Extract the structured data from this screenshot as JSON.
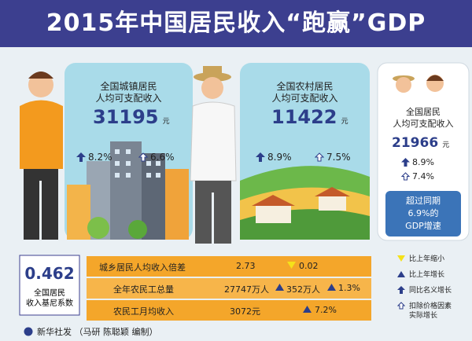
{
  "header": {
    "title": "2015年中国居民收入“跑赢”GDP"
  },
  "urban": {
    "label": [
      "全国城镇居民",
      "人均可支配收入"
    ],
    "value": "31195",
    "unit": "元",
    "nominal": "8.2%",
    "real": "6.6%"
  },
  "rural": {
    "label": [
      "全国农村居民",
      "人均可支配收入"
    ],
    "value": "11422",
    "unit": "元",
    "nominal": "8.9%",
    "real": "7.5%"
  },
  "national": {
    "label": [
      "全国居民",
      "人均可支配收入"
    ],
    "value": "21966",
    "unit": "元",
    "nominal": "8.9%",
    "real": "7.4%"
  },
  "callout": [
    "超过同期",
    "6.9%的",
    "GDP增速"
  ],
  "gini": {
    "value": "0.462",
    "label": [
      "全国居民",
      "收入基尼系数"
    ]
  },
  "table": {
    "rows": [
      [
        "城乡居民人均收入倍差",
        "2.73",
        "0.02"
      ],
      [
        "全年农民工总量",
        "27747万人",
        "352万人",
        "1.3%"
      ],
      [
        "农民工月均收入",
        "3072元",
        "7.2%"
      ]
    ]
  },
  "legend": [
    "比上年缩小",
    "比上年增长",
    "同比名义增长",
    [
      "扣除价格因素",
      "实际增长"
    ]
  ],
  "footer": "新华社发 （马研 陈聪颖 编制）"
}
